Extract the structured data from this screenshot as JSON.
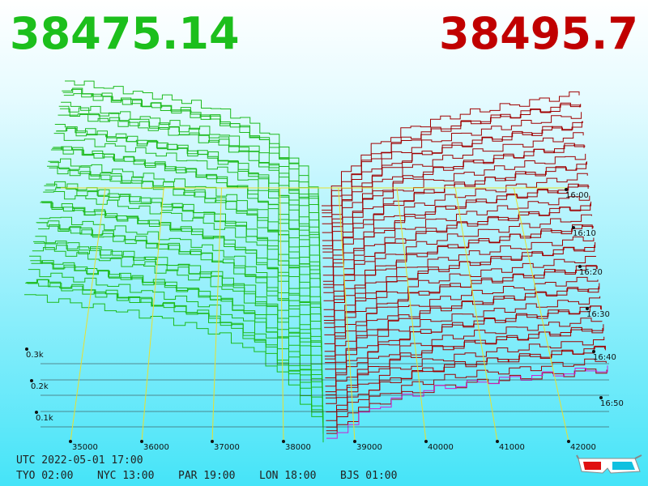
{
  "header": {
    "bid": "38475.14",
    "ask": "38495.7"
  },
  "axis": {
    "price_labels": [
      "35000",
      "36000",
      "37000",
      "38000",
      "39000",
      "40000",
      "41000",
      "42000"
    ],
    "depth_labels": [
      "0.3k",
      "0.2k",
      "0.1k"
    ],
    "time_labels": [
      "16:00",
      "16:10",
      "16:20",
      "16:30",
      "16:40",
      "16:50"
    ]
  },
  "footer": {
    "utc": "UTC 2022-05-01 17:00",
    "cities": [
      "TYO 02:00",
      "NYC 13:00",
      "PAR 19:00",
      "LON 18:00",
      "BJS 01:00"
    ]
  }
}
